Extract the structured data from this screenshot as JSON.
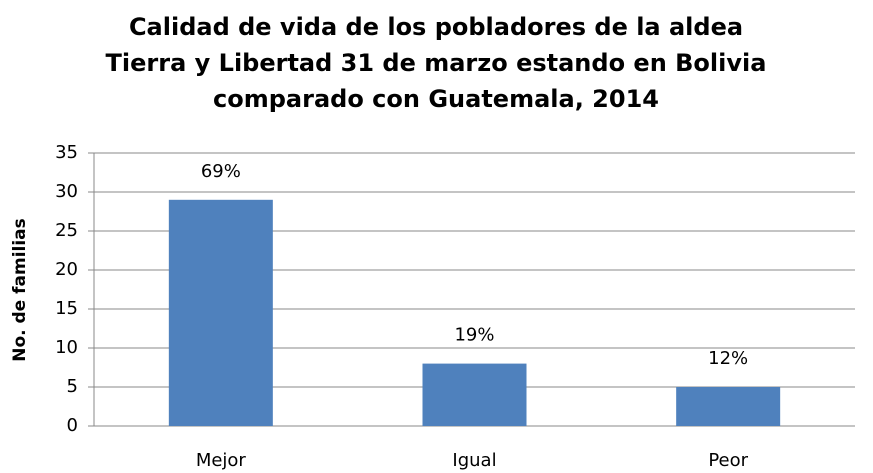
{
  "chart_data": {
    "type": "bar",
    "title": [
      "Calidad de vida de los pobladores de la aldea",
      "Tierra y Libertad 31 de marzo estando en Bolivia",
      "comparado con Guatemala, 2014"
    ],
    "y_label": "No. de familias",
    "categories": [
      "Mejor",
      "Igual",
      "Peor"
    ],
    "values": [
      29,
      8,
      5
    ],
    "annotations": [
      "69%",
      "19%",
      "12%"
    ],
    "color": "#4f81bd",
    "ylim": [
      0,
      35
    ],
    "yticks": [
      0,
      5,
      10,
      15,
      20,
      25,
      30,
      35
    ],
    "grid": true
  }
}
